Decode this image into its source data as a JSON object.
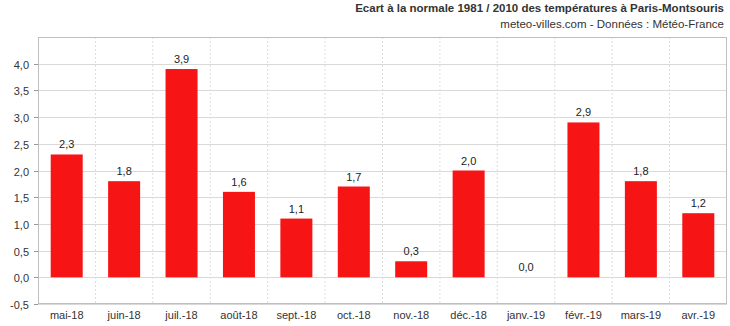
{
  "chart_data": {
    "type": "bar",
    "title": "Ecart à la normale 1981 / 2010 des températures à Paris-Montsouris",
    "subtitle": "meteo-villes.com - Données : Météo-France",
    "categories": [
      "mai-18",
      "juin-18",
      "juil.-18",
      "août-18",
      "sept.-18",
      "oct.-18",
      "nov.-18",
      "déc.-18",
      "janv.-19",
      "févr.-19",
      "mars-19",
      "avr.-19"
    ],
    "values": [
      2.3,
      1.8,
      3.9,
      1.6,
      1.1,
      1.7,
      0.3,
      2.0,
      0.0,
      2.9,
      1.8,
      1.2
    ],
    "value_labels": [
      "2,3",
      "1,8",
      "3,9",
      "1,6",
      "1,1",
      "1,7",
      "0,3",
      "2,0",
      "0,0",
      "2,9",
      "1,8",
      "1,2"
    ],
    "color": "#f71414",
    "ylim": [
      -0.5,
      4.5
    ],
    "yticks": [
      {
        "value": -0.5,
        "label": "-0,5"
      },
      {
        "value": 0,
        "label": "0,0"
      },
      {
        "value": 0.5,
        "label": "0,5"
      },
      {
        "value": 1,
        "label": "1,0"
      },
      {
        "value": 1.5,
        "label": "1,5"
      },
      {
        "value": 2,
        "label": "2,0"
      },
      {
        "value": 2.5,
        "label": "2,5"
      },
      {
        "value": 3,
        "label": "3,0"
      },
      {
        "value": 3.5,
        "label": "3,5"
      },
      {
        "value": 4,
        "label": "4,0"
      }
    ],
    "grid": true,
    "data_labels": true
  }
}
